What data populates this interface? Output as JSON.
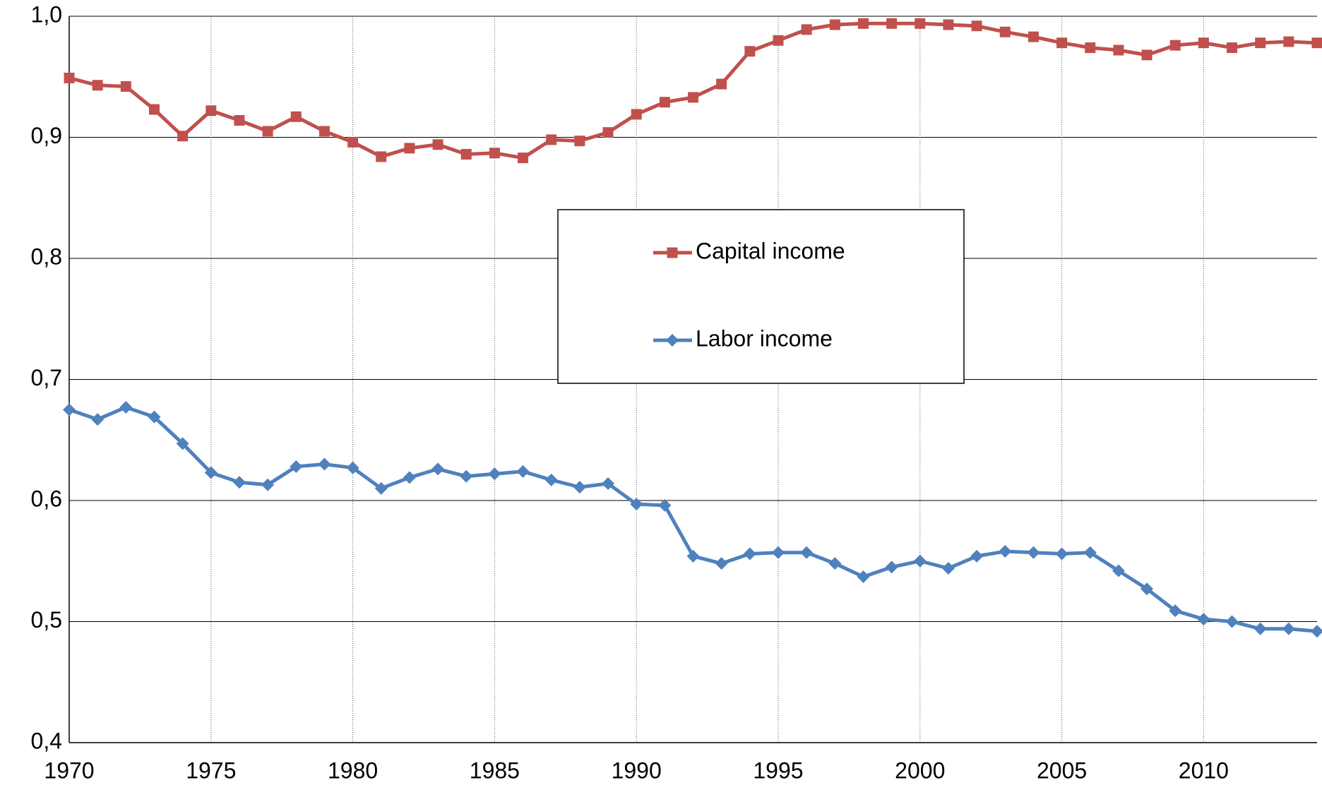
{
  "chart_data": {
    "type": "line",
    "x": [
      1970,
      1971,
      1972,
      1973,
      1974,
      1975,
      1976,
      1977,
      1978,
      1979,
      1980,
      1981,
      1982,
      1983,
      1984,
      1985,
      1986,
      1987,
      1988,
      1989,
      1990,
      1991,
      1992,
      1993,
      1994,
      1995,
      1996,
      1997,
      1998,
      1999,
      2000,
      2001,
      2002,
      2003,
      2004,
      2005,
      2006,
      2007,
      2008,
      2009,
      2010,
      2011,
      2012,
      2013,
      2014
    ],
    "series": [
      {
        "name": "Capital income",
        "color": "#c0504d",
        "marker": "square",
        "values": [
          0.949,
          0.943,
          0.942,
          0.923,
          0.901,
          0.922,
          0.914,
          0.905,
          0.917,
          0.905,
          0.896,
          0.884,
          0.891,
          0.894,
          0.886,
          0.887,
          0.883,
          0.898,
          0.897,
          0.904,
          0.919,
          0.929,
          0.933,
          0.944,
          0.971,
          0.98,
          0.989,
          0.993,
          0.994,
          0.994,
          0.994,
          0.993,
          0.992,
          0.987,
          0.983,
          0.978,
          0.974,
          0.972,
          0.968,
          0.976,
          0.978,
          0.974,
          0.978,
          0.979,
          0.978
        ]
      },
      {
        "name": "Labor income",
        "color": "#4f81bd",
        "marker": "diamond",
        "values": [
          0.675,
          0.667,
          0.677,
          0.669,
          0.647,
          0.623,
          0.615,
          0.613,
          0.628,
          0.63,
          0.627,
          0.61,
          0.619,
          0.626,
          0.62,
          0.622,
          0.624,
          0.617,
          0.611,
          0.614,
          0.597,
          0.596,
          0.554,
          0.548,
          0.556,
          0.557,
          0.557,
          0.548,
          0.537,
          0.545,
          0.55,
          0.544,
          0.554,
          0.558,
          0.557,
          0.556,
          0.557,
          0.542,
          0.527,
          0.509,
          0.502,
          0.5,
          0.494,
          0.494,
          0.492
        ]
      }
    ],
    "xlim": [
      1970,
      2014
    ],
    "xticks": [
      1970,
      1975,
      1980,
      1985,
      1990,
      1995,
      2000,
      2005,
      2010
    ],
    "ylim": [
      0.4,
      1.0
    ],
    "yticks": [
      {
        "value": 0.4,
        "label": "0,4"
      },
      {
        "value": 0.5,
        "label": "0,5"
      },
      {
        "value": 0.6,
        "label": "0,6"
      },
      {
        "value": 0.7,
        "label": "0,7"
      },
      {
        "value": 0.8,
        "label": "0,8"
      },
      {
        "value": 0.9,
        "label": "0,9"
      },
      {
        "value": 1.0,
        "label": "1,0"
      }
    ],
    "grid": true
  }
}
